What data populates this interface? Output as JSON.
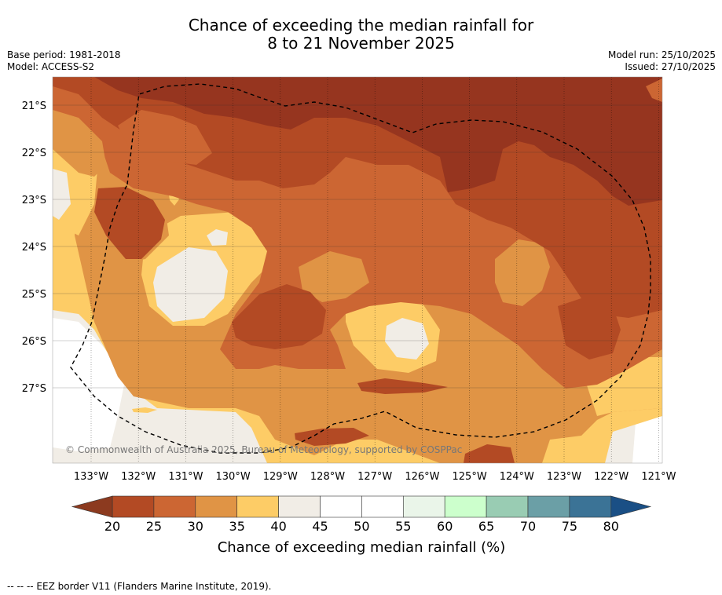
{
  "title": {
    "line1": "Chance of exceeding the median rainfall for",
    "line2": "8 to 21 November 2025"
  },
  "meta": {
    "base_period": "Base period: 1981-2018",
    "model": "Model: ACCESS-S2",
    "model_run": "Model run: 25/10/2025",
    "issued": "Issued: 27/10/2025"
  },
  "map": {
    "lat_labels": [
      "21°S",
      "22°S",
      "23°S",
      "24°S",
      "25°S",
      "26°S",
      "27°S"
    ],
    "lon_labels": [
      "133°W",
      "132°W",
      "131°W",
      "130°W",
      "129°W",
      "128°W",
      "127°W",
      "126°W",
      "125°W",
      "124°W",
      "123°W",
      "122°W",
      "121°W"
    ],
    "copyright": "© Commonwealth of Australia 2025, Bureau of Meteorology, supported by COSPPac"
  },
  "colorbar": {
    "ticks": [
      "20",
      "25",
      "30",
      "35",
      "40",
      "45",
      "50",
      "55",
      "60",
      "65",
      "70",
      "75",
      "80"
    ],
    "colors": [
      "#b34a24",
      "#cc6633",
      "#e09445",
      "#fdcc66",
      "#f1ede6",
      "#ffffff",
      "#ffffff",
      "#eaf5e9",
      "#ccffcc",
      "#99ccb3",
      "#6b9fa6",
      "#3b7396"
    ],
    "under_color": "#8c3a1f",
    "over_color": "#1a4f85",
    "label": "Chance of exceeding median rainfall (%)"
  },
  "palette": {
    "c15": "#96351f",
    "c20": "#b34a24",
    "c25": "#cc6633",
    "c30": "#e09445",
    "c35": "#fdcc66",
    "c40": "#f1ede6",
    "c45": "#ffffff"
  },
  "footer": "--  --  -- EEZ border V11 (Flanders Marine Institute, 2019)."
}
